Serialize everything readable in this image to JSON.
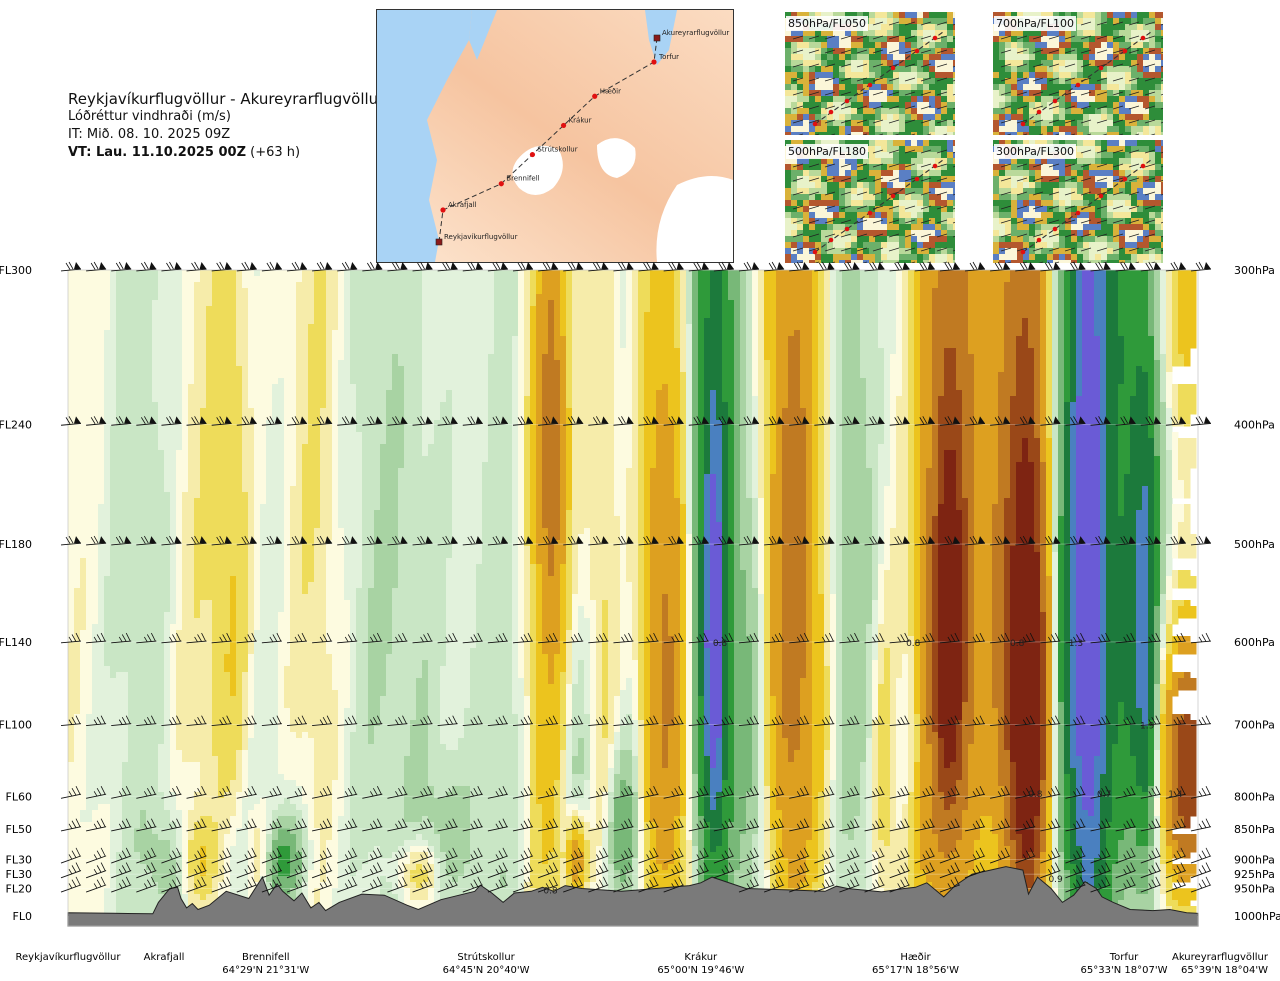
{
  "header": {
    "title": "Reykjavíkurflugvöllur - Akureyrarflugvöllur",
    "subtitle": "Lóðréttur vindhraði (m/s)",
    "it_line": "IT: Mið. 08. 10. 2025 09Z",
    "vt_strong": "VT: Lau. 11.10.2025 00Z",
    "vt_suffix": " (+63 h)"
  },
  "route_map": {
    "waypoints": [
      {
        "name": "Reykjavíkurflugvöllur",
        "color": "#8b1a1a"
      },
      {
        "name": "Akrafjall",
        "color": "#e01010"
      },
      {
        "name": "Brennifell",
        "color": "#e01010"
      },
      {
        "name": "Strútskollur",
        "color": "#e01010"
      },
      {
        "name": "Krákur",
        "color": "#e01010"
      },
      {
        "name": "Hæðir",
        "color": "#e01010"
      },
      {
        "name": "Torfur",
        "color": "#e01010"
      },
      {
        "name": "Akureyrarflugvöllur",
        "color": "#8b1a1a"
      }
    ]
  },
  "insets": [
    {
      "label": "850hPa/FL050"
    },
    {
      "label": "700hPa/FL100"
    },
    {
      "label": "500hPa/FL180"
    },
    {
      "label": "300hPa/FL300"
    }
  ],
  "chart_data": {
    "type": "heatmap",
    "title": "Reykjavíkurflugvöllur - Akureyrarflugvöllur",
    "value_label": "Lóðréttur vindhraði (m/s)",
    "levels": [
      {
        "fl": "FL300",
        "p": "300hPa",
        "hpa": 300
      },
      {
        "fl": "FL240",
        "p": "400hPa",
        "hpa": 400
      },
      {
        "fl": "FL180",
        "p": "500hPa",
        "hpa": 500
      },
      {
        "fl": "FL140",
        "p": "600hPa",
        "hpa": 600
      },
      {
        "fl": "FL100",
        "p": "700hPa",
        "hpa": 700
      },
      {
        "fl": "FL60",
        "p": "800hPa",
        "hpa": 800
      },
      {
        "fl": "FL50",
        "p": "850hPa",
        "hpa": 850
      },
      {
        "fl": "FL30",
        "p": "900hPa",
        "hpa": 900
      },
      {
        "fl": "FL30",
        "p": "925hPa",
        "hpa": 925
      },
      {
        "fl": "FL20",
        "p": "950hPa",
        "hpa": 950
      },
      {
        "fl": "FL0",
        "p": "1000hPa",
        "hpa": 1000
      }
    ],
    "locations": [
      {
        "name": "Reykjavíkurflugvöllur",
        "coord": "",
        "d": 0
      },
      {
        "name": "Akrafjall",
        "coord": "",
        "d": 0.085
      },
      {
        "name": "Brennifell",
        "coord": "64°29'N 21°31'W",
        "d": 0.175
      },
      {
        "name": "Strútskollur",
        "coord": "64°45'N 20°40'W",
        "d": 0.37
      },
      {
        "name": "Krákur",
        "coord": "65°00'N 19°46'W",
        "d": 0.56
      },
      {
        "name": "Hæðir",
        "coord": "65°17'N 18°56'W",
        "d": 0.75
      },
      {
        "name": "Torfur",
        "coord": "65°33'N 18°07'W",
        "d": 0.95
      },
      {
        "name": "Akureyrarflugvöllur",
        "coord": "65°39'N 18°04'W",
        "d": 1.0
      }
    ],
    "color_classes": [
      {
        "w": -2.0,
        "color": "#6a5bd6"
      },
      {
        "w": -1.5,
        "color": "#4a80c0"
      },
      {
        "w": -1.0,
        "color": "#1c7a3c"
      },
      {
        "w": -0.6,
        "color": "#2f9a3a"
      },
      {
        "w": -0.35,
        "color": "#78b878"
      },
      {
        "w": -0.2,
        "color": "#a8d3a3"
      },
      {
        "w": -0.1,
        "color": "#c9e6c5"
      },
      {
        "w": -0.03,
        "color": "#e2f2dc"
      },
      {
        "w": 0.03,
        "color": "#fdfbe0"
      },
      {
        "w": 0.1,
        "color": "#f6ecaa"
      },
      {
        "w": 0.2,
        "color": "#eedc5a"
      },
      {
        "w": 0.35,
        "color": "#ecc41e"
      },
      {
        "w": 0.6,
        "color": "#dda020"
      },
      {
        "w": 1.0,
        "color": "#c07a22"
      },
      {
        "w": 1.5,
        "color": "#9a4818"
      },
      {
        "w": 2.0,
        "color": "#7e2412"
      }
    ],
    "cells": [
      {
        "d": 0.11,
        "p": 560,
        "w": 0.15,
        "sd": 0.02,
        "sp": 260
      },
      {
        "d": 0.145,
        "p": 520,
        "w": 0.28,
        "sd": 0.012,
        "sp": 280
      },
      {
        "d": 0.085,
        "p": 520,
        "w": -0.12,
        "sd": 0.03,
        "sp": 350
      },
      {
        "d": 0.22,
        "p": 450,
        "w": 0.12,
        "sd": 0.02,
        "sp": 300
      },
      {
        "d": 0.27,
        "p": 560,
        "w": -0.1,
        "sd": 0.03,
        "sp": 300
      },
      {
        "d": 0.32,
        "p": 600,
        "w": -0.12,
        "sd": 0.02,
        "sp": 300
      },
      {
        "d": 0.19,
        "p": 905,
        "w": -0.5,
        "sd": 0.012,
        "sp": 45
      },
      {
        "d": 0.165,
        "p": 885,
        "w": -0.15,
        "sd": 0.03,
        "sp": 80
      },
      {
        "d": 0.17,
        "p": 890,
        "w": 0.35,
        "sd": 0.01,
        "sp": 60
      },
      {
        "d": 0.115,
        "p": 900,
        "w": 0.3,
        "sd": 0.012,
        "sp": 50
      },
      {
        "d": 0.09,
        "p": 910,
        "w": -0.2,
        "sd": 0.015,
        "sp": 60
      },
      {
        "d": 0.31,
        "p": 920,
        "w": 0.3,
        "sd": 0.014,
        "sp": 40
      },
      {
        "d": 0.335,
        "p": 870,
        "w": -0.2,
        "sd": 0.02,
        "sp": 80
      },
      {
        "d": 0.4,
        "p": 700,
        "w": -0.12,
        "sd": 0.025,
        "sp": 350
      },
      {
        "d": 0.425,
        "p": 580,
        "w": 0.45,
        "sd": 0.016,
        "sp": 380
      },
      {
        "d": 0.428,
        "p": 420,
        "w": 0.7,
        "sd": 0.008,
        "sp": 110
      },
      {
        "d": 0.448,
        "p": 800,
        "w": -0.3,
        "sd": 0.01,
        "sp": 220
      },
      {
        "d": 0.45,
        "p": 900,
        "w": 0.8,
        "sd": 0.006,
        "sp": 50
      },
      {
        "d": 0.475,
        "p": 600,
        "w": 0.2,
        "sd": 0.01,
        "sp": 300
      },
      {
        "d": 0.49,
        "p": 850,
        "w": -0.35,
        "sd": 0.01,
        "sp": 80
      },
      {
        "d": 0.505,
        "p": 780,
        "w": -0.2,
        "sd": 0.015,
        "sp": 250
      },
      {
        "d": 0.528,
        "p": 640,
        "w": 0.6,
        "sd": 0.014,
        "sp": 250
      },
      {
        "d": 0.528,
        "p": 650,
        "w": 0.4,
        "sd": 0.022,
        "sp": 330
      },
      {
        "d": 0.57,
        "p": 580,
        "w": -0.9,
        "sd": 0.012,
        "sp": 300
      },
      {
        "d": 0.572,
        "p": 610,
        "w": -1.7,
        "sd": 0.005,
        "sp": 130
      },
      {
        "d": 0.568,
        "p": 540,
        "w": -0.3,
        "sd": 0.03,
        "sp": 360
      },
      {
        "d": 0.61,
        "p": 720,
        "w": -0.25,
        "sd": 0.012,
        "sp": 220
      },
      {
        "d": 0.64,
        "p": 560,
        "w": 0.7,
        "sd": 0.016,
        "sp": 300
      },
      {
        "d": 0.64,
        "p": 520,
        "w": 0.3,
        "sd": 0.025,
        "sp": 380
      },
      {
        "d": 0.69,
        "p": 520,
        "w": -0.25,
        "sd": 0.016,
        "sp": 330
      },
      {
        "d": 0.722,
        "p": 780,
        "w": 0.25,
        "sd": 0.008,
        "sp": 170
      },
      {
        "d": 0.745,
        "p": 690,
        "w": -0.15,
        "sd": 0.01,
        "sp": 240
      },
      {
        "d": 0.755,
        "p": 880,
        "w": 0.2,
        "sd": 0.012,
        "sp": 60
      },
      {
        "d": 0.78,
        "p": 560,
        "w": 0.9,
        "sd": 0.018,
        "sp": 280
      },
      {
        "d": 0.78,
        "p": 600,
        "w": 1.6,
        "sd": 0.008,
        "sp": 130
      },
      {
        "d": 0.79,
        "p": 500,
        "w": 0.4,
        "sd": 0.03,
        "sp": 380
      },
      {
        "d": 0.825,
        "p": 500,
        "w": 0.35,
        "sd": 0.012,
        "sp": 300
      },
      {
        "d": 0.845,
        "p": 610,
        "w": 1.1,
        "sd": 0.014,
        "sp": 280
      },
      {
        "d": 0.85,
        "p": 680,
        "w": 1.8,
        "sd": 0.01,
        "sp": 180
      },
      {
        "d": 0.857,
        "p": 520,
        "w": 0.3,
        "sd": 0.015,
        "sp": 400
      },
      {
        "d": 0.9,
        "p": 560,
        "w": -1.2,
        "sd": 0.02,
        "sp": 300
      },
      {
        "d": 0.903,
        "p": 550,
        "w": -1.3,
        "sd": 0.01,
        "sp": 380
      },
      {
        "d": 0.945,
        "p": 600,
        "w": -0.6,
        "sd": 0.014,
        "sp": 240
      },
      {
        "d": 0.953,
        "p": 610,
        "w": -0.9,
        "sd": 0.006,
        "sp": 160
      },
      {
        "d": 0.955,
        "p": 420,
        "w": -0.25,
        "sd": 0.018,
        "sp": 160
      },
      {
        "d": 0.99,
        "p": 760,
        "w": 1.6,
        "sd": 0.014,
        "sp": 110
      },
      {
        "d": 0.985,
        "p": 320,
        "w": 0.3,
        "sd": 0.02,
        "sp": 60
      },
      {
        "d": 0.93,
        "p": 320,
        "w": -0.2,
        "sd": 0.012,
        "sp": 60
      }
    ],
    "annotations": [
      {
        "text": "0.8",
        "d": 0.577,
        "p": 600
      },
      {
        "text": "0.8",
        "d": 0.748,
        "p": 600
      },
      {
        "text": "0.8",
        "d": 0.84,
        "p": 600
      },
      {
        "text": "1.3",
        "d": 0.892,
        "p": 600
      },
      {
        "text": "1.9",
        "d": 0.955,
        "p": 700
      },
      {
        "text": "0.8",
        "d": 0.856,
        "p": 795
      },
      {
        "text": "0.7",
        "d": 0.917,
        "p": 795
      },
      {
        "text": "1.4",
        "d": 0.98,
        "p": 795
      },
      {
        "text": "0.9",
        "d": 0.874,
        "p": 932
      },
      {
        "text": "0.8",
        "d": 0.427,
        "p": 952
      }
    ],
    "terrain_hpa": [
      [
        0,
        994
      ],
      [
        0.04,
        995
      ],
      [
        0.075,
        996
      ],
      [
        0.08,
        975
      ],
      [
        0.09,
        950
      ],
      [
        0.097,
        948
      ],
      [
        0.1,
        968
      ],
      [
        0.105,
        985
      ],
      [
        0.11,
        977
      ],
      [
        0.115,
        988
      ],
      [
        0.125,
        980
      ],
      [
        0.14,
        955
      ],
      [
        0.16,
        968
      ],
      [
        0.172,
        930
      ],
      [
        0.178,
        962
      ],
      [
        0.185,
        942
      ],
      [
        0.19,
        955
      ],
      [
        0.2,
        972
      ],
      [
        0.207,
        958
      ],
      [
        0.215,
        985
      ],
      [
        0.222,
        975
      ],
      [
        0.228,
        990
      ],
      [
        0.24,
        975
      ],
      [
        0.26,
        960
      ],
      [
        0.28,
        962
      ],
      [
        0.3,
        980
      ],
      [
        0.31,
        988
      ],
      [
        0.33,
        970
      ],
      [
        0.36,
        955
      ],
      [
        0.365,
        944
      ],
      [
        0.375,
        958
      ],
      [
        0.385,
        975
      ],
      [
        0.395,
        958
      ],
      [
        0.41,
        955
      ],
      [
        0.42,
        948
      ],
      [
        0.43,
        955
      ],
      [
        0.44,
        945
      ],
      [
        0.455,
        950
      ],
      [
        0.49,
        955
      ],
      [
        0.52,
        950
      ],
      [
        0.55,
        945
      ],
      [
        0.56,
        940
      ],
      [
        0.57,
        930
      ],
      [
        0.6,
        950
      ],
      [
        0.63,
        952
      ],
      [
        0.67,
        955
      ],
      [
        0.68,
        946
      ],
      [
        0.69,
        950
      ],
      [
        0.72,
        956
      ],
      [
        0.74,
        950
      ],
      [
        0.75,
        948
      ],
      [
        0.76,
        940
      ],
      [
        0.775,
        965
      ],
      [
        0.785,
        945
      ],
      [
        0.8,
        925
      ],
      [
        0.83,
        912
      ],
      [
        0.845,
        918
      ],
      [
        0.85,
        960
      ],
      [
        0.858,
        930
      ],
      [
        0.87,
        950
      ],
      [
        0.88,
        975
      ],
      [
        0.89,
        962
      ],
      [
        0.9,
        938
      ],
      [
        0.91,
        950
      ],
      [
        0.915,
        965
      ],
      [
        0.925,
        975
      ],
      [
        0.94,
        988
      ],
      [
        0.96,
        990
      ],
      [
        0.975,
        988
      ],
      [
        0.99,
        994
      ],
      [
        1.0,
        995
      ]
    ],
    "x_range": [
      0,
      1
    ],
    "y_range_hpa": [
      300,
      1000
    ],
    "y_scale": "log",
    "grid": false
  },
  "colors": {
    "terrain": "#7a7a7a",
    "contour": "#ffffff",
    "background": "#ffffff"
  }
}
